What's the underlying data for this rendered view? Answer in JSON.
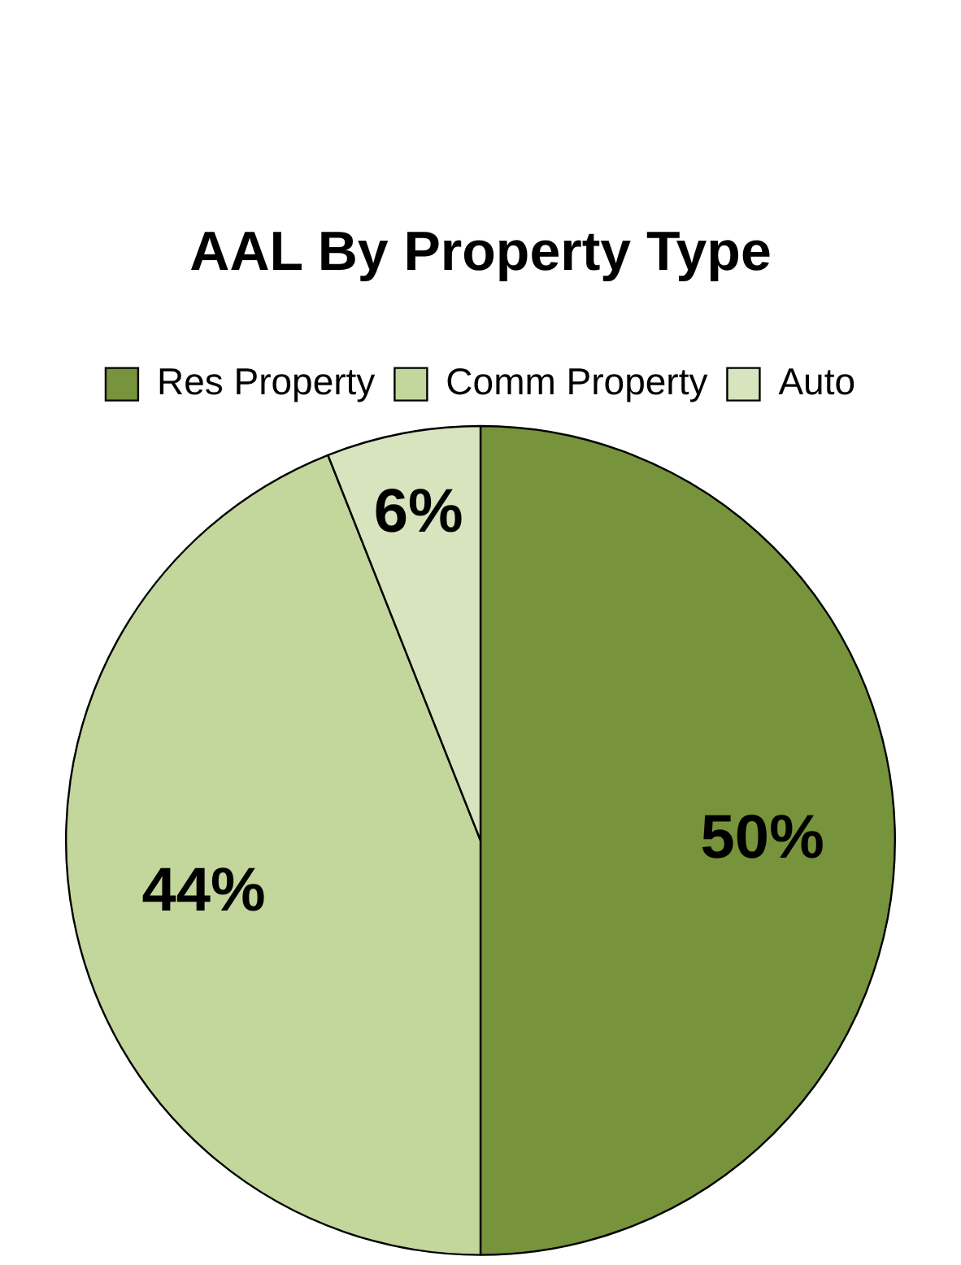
{
  "chart_data": {
    "type": "pie",
    "title": "AAL By Property Type",
    "categories": [
      "Res Property",
      "Comm Property",
      "Auto"
    ],
    "values": [
      50,
      44,
      6
    ],
    "colors": [
      "#77933c",
      "#c3d69b",
      "#d7e4bd"
    ],
    "value_labels": [
      "50%",
      "44%",
      "6%"
    ],
    "legend": "top"
  }
}
